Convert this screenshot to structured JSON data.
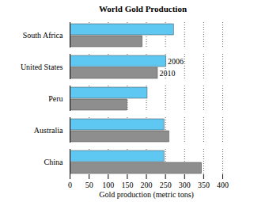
{
  "chart_data": {
    "type": "bar",
    "title": "World Gold Production",
    "orientation": "horizontal",
    "categories": [
      "South Africa",
      "United States",
      "Peru",
      "Australia",
      "China"
    ],
    "series": [
      {
        "name": "2006",
        "color": "#5ec8f2",
        "values": [
          272,
          252,
          203,
          247,
          247
        ]
      },
      {
        "name": "2010",
        "color": "#8e8e8e",
        "values": [
          190,
          230,
          150,
          260,
          345
        ]
      }
    ],
    "x_label": "Gold production (metric tons)",
    "xlim": [
      0,
      400
    ],
    "xticks": [
      0,
      50,
      100,
      150,
      200,
      250,
      300,
      350,
      400
    ],
    "grid": true
  }
}
